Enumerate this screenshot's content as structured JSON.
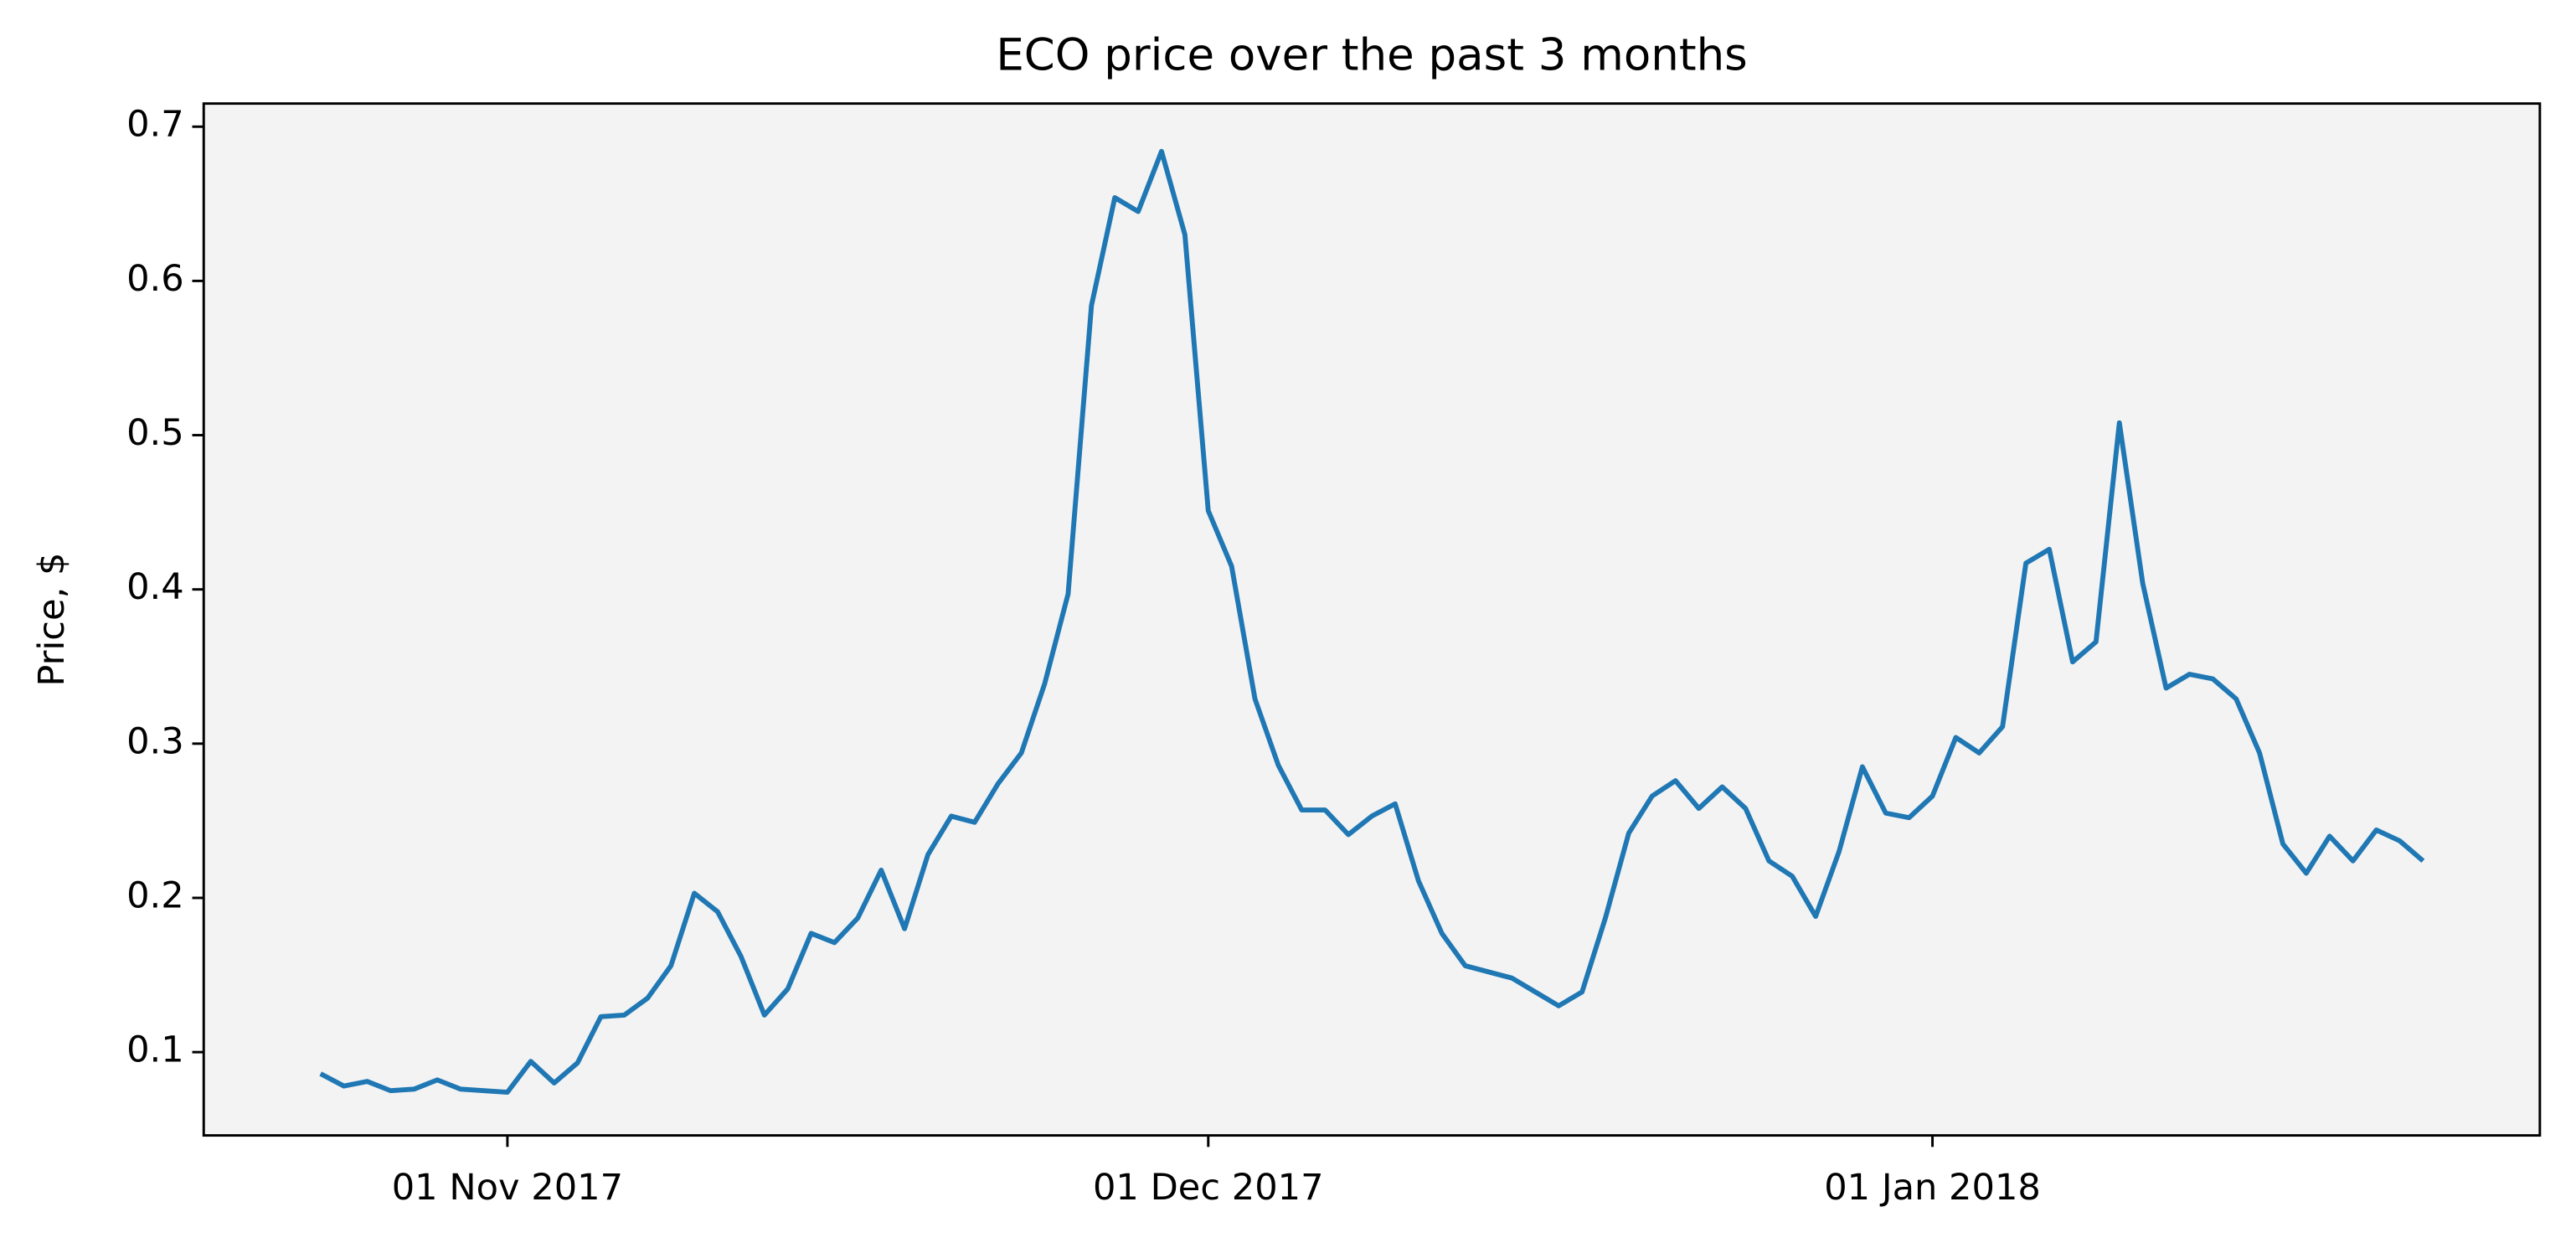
{
  "chart_data": {
    "type": "line",
    "title": "ECO price over the past 3 months",
    "y_label": "Price, $",
    "color": "#1f77b4",
    "background": "#f3f3f3",
    "x": [
      "2017-10-24",
      "2017-10-25",
      "2017-10-26",
      "2017-10-27",
      "2017-10-28",
      "2017-10-29",
      "2017-10-30",
      "2017-10-31",
      "2017-11-01",
      "2017-11-02",
      "2017-11-03",
      "2017-11-04",
      "2017-11-05",
      "2017-11-06",
      "2017-11-07",
      "2017-11-08",
      "2017-11-09",
      "2017-11-10",
      "2017-11-11",
      "2017-11-12",
      "2017-11-13",
      "2017-11-14",
      "2017-11-15",
      "2017-11-16",
      "2017-11-17",
      "2017-11-18",
      "2017-11-19",
      "2017-11-20",
      "2017-11-21",
      "2017-11-22",
      "2017-11-23",
      "2017-11-24",
      "2017-11-25",
      "2017-11-26",
      "2017-11-27",
      "2017-11-28",
      "2017-11-29",
      "2017-11-30",
      "2017-12-01",
      "2017-12-02",
      "2017-12-03",
      "2017-12-04",
      "2017-12-05",
      "2017-12-06",
      "2017-12-07",
      "2017-12-08",
      "2017-12-09",
      "2017-12-10",
      "2017-12-11",
      "2017-12-12",
      "2017-12-13",
      "2017-12-14",
      "2017-12-15",
      "2017-12-16",
      "2017-12-17",
      "2017-12-18",
      "2017-12-19",
      "2017-12-20",
      "2017-12-21",
      "2017-12-22",
      "2017-12-23",
      "2017-12-24",
      "2017-12-25",
      "2017-12-26",
      "2017-12-27",
      "2017-12-28",
      "2017-12-29",
      "2017-12-30",
      "2017-12-31",
      "2018-01-01",
      "2018-01-02",
      "2018-01-03",
      "2018-01-04",
      "2018-01-05",
      "2018-01-06",
      "2018-01-07",
      "2018-01-08",
      "2018-01-09",
      "2018-01-10",
      "2018-01-11",
      "2018-01-12",
      "2018-01-13",
      "2018-01-14",
      "2018-01-15",
      "2018-01-16",
      "2018-01-17",
      "2018-01-18",
      "2018-01-19",
      "2018-01-20",
      "2018-01-21",
      "2018-01-22"
    ],
    "values": [
      0.086,
      0.078,
      0.081,
      0.075,
      0.076,
      0.082,
      0.076,
      0.075,
      0.074,
      0.094,
      0.08,
      0.093,
      0.123,
      0.124,
      0.135,
      0.156,
      0.203,
      0.191,
      0.162,
      0.124,
      0.141,
      0.177,
      0.171,
      0.187,
      0.218,
      0.18,
      0.228,
      0.253,
      0.249,
      0.274,
      0.294,
      0.339,
      0.397,
      0.584,
      0.654,
      0.645,
      0.684,
      0.63,
      0.451,
      0.415,
      0.329,
      0.286,
      0.257,
      0.257,
      0.241,
      0.253,
      0.261,
      0.211,
      0.177,
      0.156,
      0.152,
      0.148,
      0.139,
      0.13,
      0.139,
      0.187,
      0.242,
      0.266,
      0.276,
      0.258,
      0.272,
      0.258,
      0.224,
      0.214,
      0.188,
      0.23,
      0.285,
      0.255,
      0.252,
      0.266,
      0.304,
      0.294,
      0.311,
      0.417,
      0.426,
      0.353,
      0.366,
      0.508,
      0.404,
      0.336,
      0.345,
      0.342,
      0.329,
      0.294,
      0.235,
      0.216,
      0.24,
      0.224,
      0.244,
      0.237,
      0.224
    ],
    "xlim": [
      "2017-10-19",
      "2018-01-27"
    ],
    "xticks": [
      {
        "value": "2017-11-01",
        "label": "01 Nov 2017"
      },
      {
        "value": "2017-12-01",
        "label": "01 Dec 2017"
      },
      {
        "value": "2018-01-01",
        "label": "01 Jan 2018"
      }
    ],
    "ylim": [
      0.046,
      0.715
    ],
    "yticks": [
      0.1,
      0.2,
      0.3,
      0.4,
      0.5,
      0.6,
      0.7
    ],
    "grid": false
  }
}
